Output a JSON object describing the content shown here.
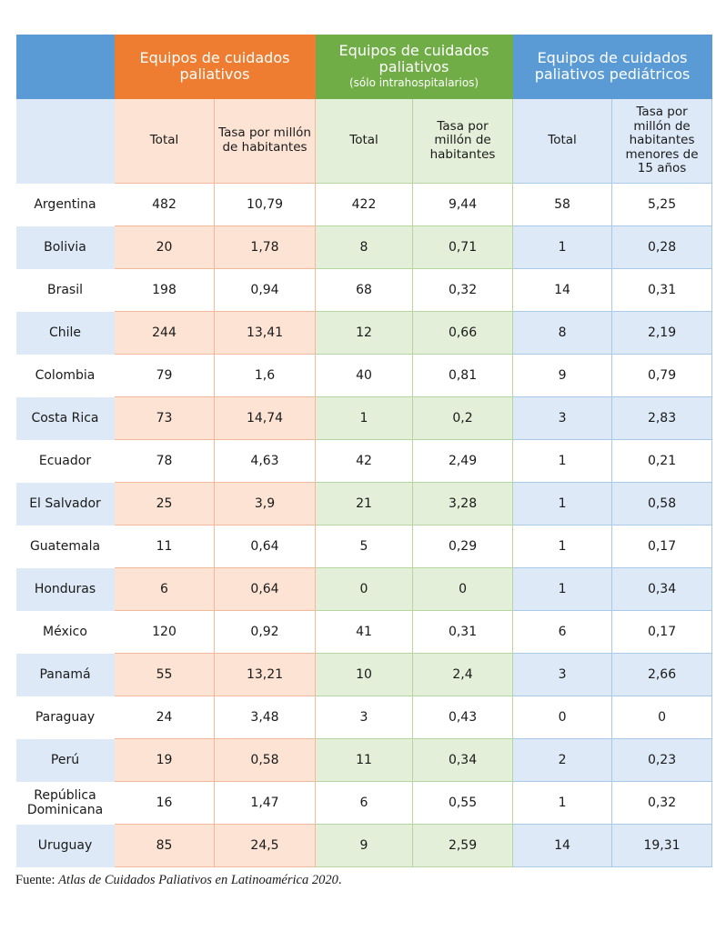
{
  "groups": {
    "all": {
      "title": "Equipos de cuidados paliativos"
    },
    "hospital": {
      "title": "Equipos de cuidados paliativos",
      "subtitle": "(sólo intrahospitalarios)"
    },
    "pediatric": {
      "title": "Equipos de cuidados paliativos pediátricos"
    }
  },
  "subheaders": {
    "total": "Total",
    "rate": "Tasa por millón de habitantes",
    "rate_children": "Tasa por millón de habitantes menores de 15 años"
  },
  "rows": [
    {
      "country": "Argentina",
      "values": [
        "482",
        "10,79",
        "422",
        "9,44",
        "58",
        "5,25"
      ]
    },
    {
      "country": "Bolivia",
      "values": [
        "20",
        "1,78",
        "8",
        "0,71",
        "1",
        "0,28"
      ]
    },
    {
      "country": "Brasil",
      "values": [
        "198",
        "0,94",
        "68",
        "0,32",
        "14",
        "0,31"
      ]
    },
    {
      "country": "Chile",
      "values": [
        "244",
        "13,41",
        "12",
        "0,66",
        "8",
        "2,19"
      ]
    },
    {
      "country": "Colombia",
      "values": [
        "79",
        "1,6",
        "40",
        "0,81",
        "9",
        "0,79"
      ]
    },
    {
      "country": "Costa Rica",
      "values": [
        "73",
        "14,74",
        "1",
        "0,2",
        "3",
        "2,83"
      ]
    },
    {
      "country": "Ecuador",
      "values": [
        "78",
        "4,63",
        "42",
        "2,49",
        "1",
        "0,21"
      ]
    },
    {
      "country": "El Salvador",
      "values": [
        "25",
        "3,9",
        "21",
        "3,28",
        "1",
        "0,58"
      ]
    },
    {
      "country": "Guatemala",
      "values": [
        "11",
        "0,64",
        "5",
        "0,29",
        "1",
        "0,17"
      ]
    },
    {
      "country": "Honduras",
      "values": [
        "6",
        "0,64",
        "0",
        "0",
        "1",
        "0,34"
      ]
    },
    {
      "country": "México",
      "values": [
        "120",
        "0,92",
        "41",
        "0,31",
        "6",
        "0,17"
      ]
    },
    {
      "country": "Panamá",
      "values": [
        "55",
        "13,21",
        "10",
        "2,4",
        "3",
        "2,66"
      ]
    },
    {
      "country": "Paraguay",
      "values": [
        "24",
        "3,48",
        "3",
        "0,43",
        "0",
        "0"
      ]
    },
    {
      "country": "Perú",
      "values": [
        "19",
        "0,58",
        "11",
        "0,34",
        "2",
        "0,23"
      ]
    },
    {
      "country": "República Dominicana",
      "values": [
        "16",
        "1,47",
        "6",
        "0,55",
        "1",
        "0,32"
      ]
    },
    {
      "country": "Uruguay",
      "values": [
        "85",
        "24,5",
        "9",
        "2,59",
        "14",
        "19,31"
      ]
    }
  ],
  "source": {
    "prefix": "Fuente: ",
    "title": "Atlas de Cuidados Paliativos en Latinoamérica 2020",
    "suffix": "."
  },
  "colors": {
    "orange": "#ee7d31",
    "green": "#70ad47",
    "blue": "#5b9bd5",
    "orange_light": "#fce3d4",
    "green_light": "#e3efd9",
    "blue_light": "#dde9f6"
  }
}
